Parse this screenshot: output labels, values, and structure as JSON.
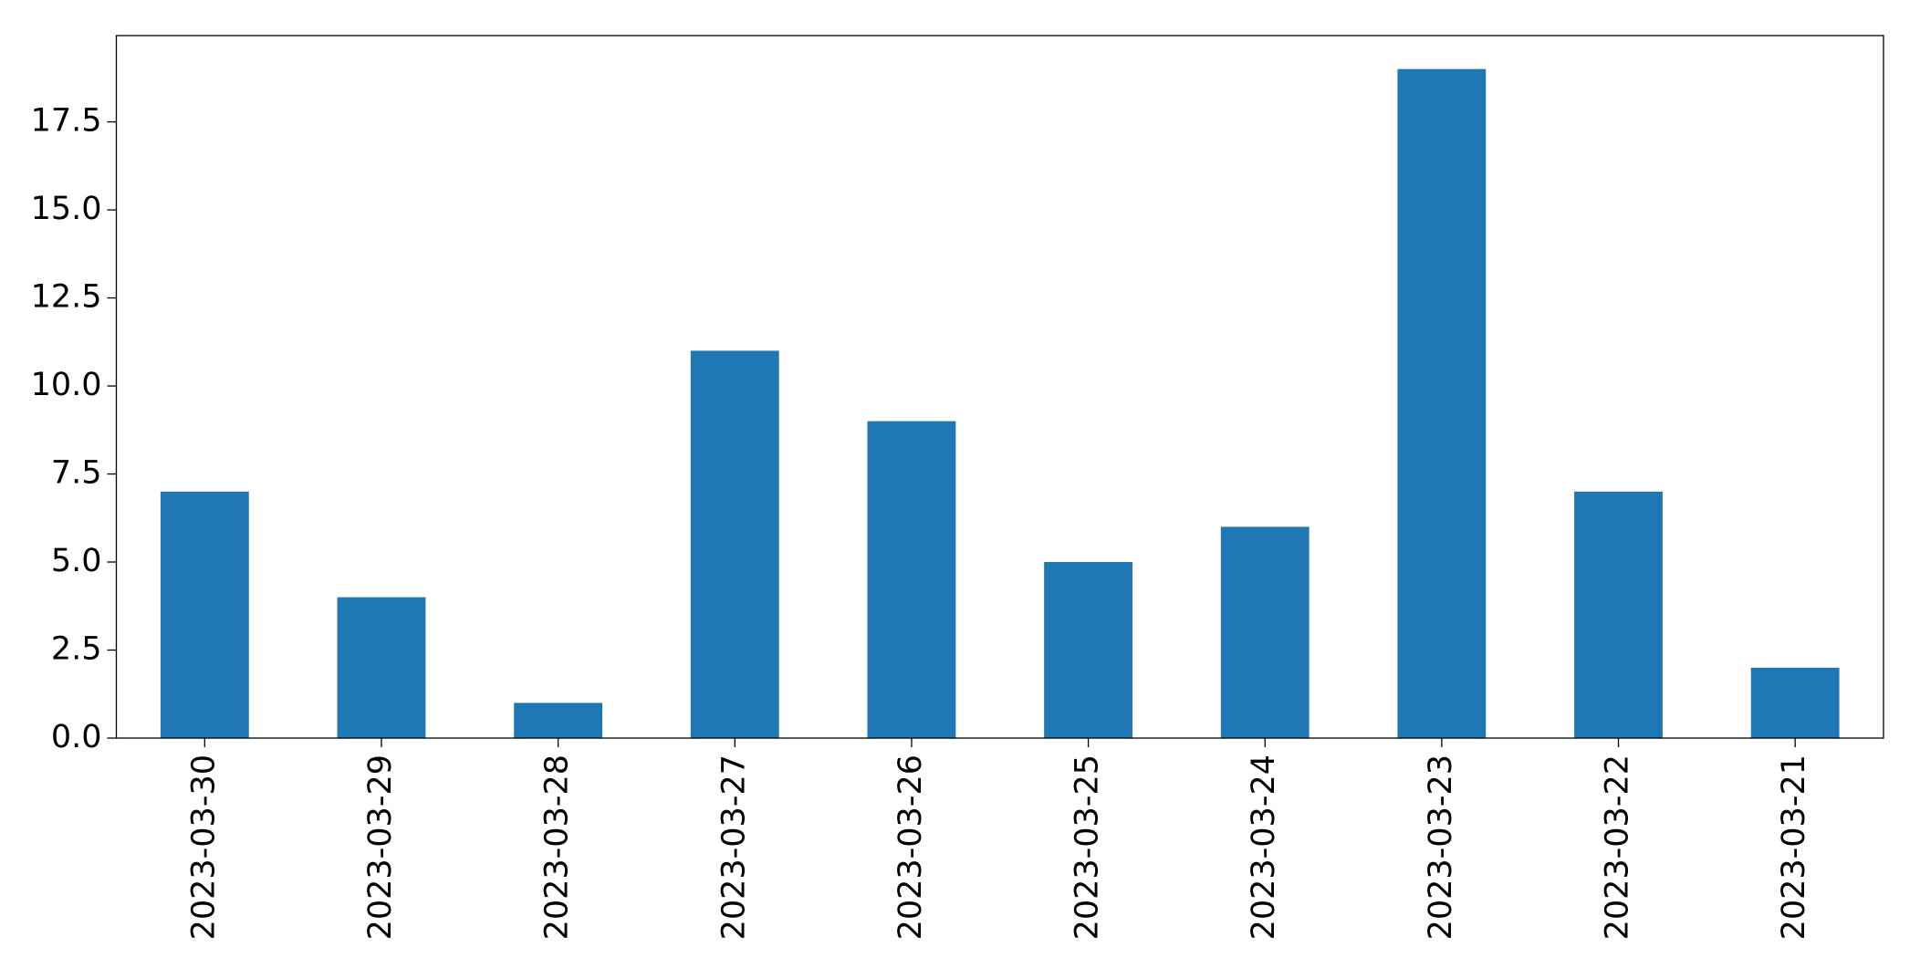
{
  "chart_data": {
    "type": "bar",
    "categories": [
      "2023-03-30",
      "2023-03-29",
      "2023-03-28",
      "2023-03-27",
      "2023-03-26",
      "2023-03-25",
      "2023-03-24",
      "2023-03-23",
      "2023-03-22",
      "2023-03-21"
    ],
    "values": [
      7,
      4,
      1,
      11,
      9,
      5,
      6,
      19,
      7,
      2
    ],
    "color": "#1f77b4",
    "ylim": [
      0,
      19.95
    ],
    "yticks": [
      {
        "value": 0,
        "label": "0.0"
      },
      2.5,
      {
        "value": 5,
        "label": "5.0"
      },
      7.5,
      {
        "value": 10,
        "label": "10.0"
      },
      12.5,
      {
        "value": 15,
        "label": "15.0"
      },
      17.5
    ],
    "grid": false
  }
}
